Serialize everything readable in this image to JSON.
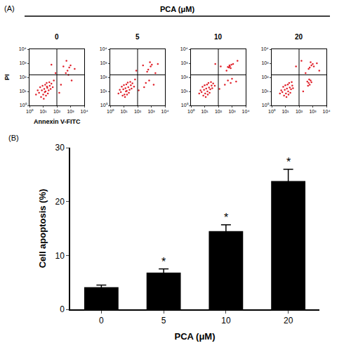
{
  "chart_data": [
    {
      "type": "scatter",
      "panel": "(A)",
      "title": "PCA (μM)",
      "xlabel": "Annexin V-FITC",
      "ylabel": "PI",
      "log": true,
      "xlim": [
        1,
        10000
      ],
      "ylim": [
        1,
        10000
      ],
      "xticks": [
        {
          "value": 1,
          "label": "10⁰"
        },
        {
          "value": 10,
          "label": "10¹"
        },
        {
          "value": 100,
          "label": "10²"
        },
        {
          "value": 1000,
          "label": "10³"
        },
        {
          "value": 10000,
          "label": "10⁴"
        }
      ],
      "yticks": [
        {
          "value": 1,
          "label": "10⁰"
        },
        {
          "value": 10,
          "label": "10¹"
        },
        {
          "value": 100,
          "label": "10²"
        },
        {
          "value": 1000,
          "label": "10³"
        },
        {
          "value": 10000,
          "label": "10⁴"
        }
      ],
      "color": "#e0202a",
      "marker": "dot",
      "quadrant_gate": {
        "x": 100,
        "y": 150
      },
      "series": [
        {
          "name": "0",
          "values": [
            [
              5,
              8
            ],
            [
              8,
              12
            ],
            [
              10,
              6
            ],
            [
              12,
              15
            ],
            [
              15,
              10
            ],
            [
              20,
              18
            ],
            [
              6,
              20
            ],
            [
              9,
              25
            ],
            [
              14,
              30
            ],
            [
              25,
              12
            ],
            [
              30,
              25
            ],
            [
              18,
              40
            ],
            [
              7,
              4
            ],
            [
              11,
              3
            ],
            [
              22,
              7
            ],
            [
              35,
              15
            ],
            [
              40,
              35
            ],
            [
              4,
              12
            ],
            [
              16,
              5
            ],
            [
              28,
              45
            ],
            [
              50,
              20
            ],
            [
              60,
              60
            ],
            [
              3,
              6
            ],
            [
              13,
              9
            ],
            [
              19,
              22
            ],
            [
              600,
              300
            ],
            [
              800,
              500
            ],
            [
              450,
              200
            ],
            [
              1000,
              700
            ],
            [
              700,
              150
            ],
            [
              300,
              600
            ],
            [
              200,
              30
            ],
            [
              1200,
              60
            ],
            [
              80,
              200
            ],
            [
              40,
              800
            ],
            [
              500,
              1500
            ],
            [
              2000,
              400
            ],
            [
              150,
              8
            ]
          ]
        },
        {
          "name": "5",
          "values": [
            [
              6,
              9
            ],
            [
              9,
              14
            ],
            [
              11,
              6
            ],
            [
              13,
              17
            ],
            [
              16,
              11
            ],
            [
              21,
              20
            ],
            [
              7,
              22
            ],
            [
              10,
              28
            ],
            [
              15,
              32
            ],
            [
              26,
              13
            ],
            [
              32,
              27
            ],
            [
              19,
              42
            ],
            [
              8,
              5
            ],
            [
              12,
              4
            ],
            [
              23,
              8
            ],
            [
              36,
              16
            ],
            [
              42,
              38
            ],
            [
              5,
              13
            ],
            [
              17,
              6
            ],
            [
              29,
              48
            ],
            [
              55,
              22
            ],
            [
              65,
              70
            ],
            [
              4,
              7
            ],
            [
              14,
              10
            ],
            [
              600,
              350
            ],
            [
              900,
              600
            ],
            [
              500,
              250
            ],
            [
              1100,
              800
            ],
            [
              400,
              40
            ],
            [
              700,
              60
            ],
            [
              1500,
              30
            ],
            [
              300,
              20
            ],
            [
              250,
              700
            ],
            [
              80,
              300
            ],
            [
              2000,
              200
            ],
            [
              800,
              1200
            ],
            [
              120,
              12
            ],
            [
              3000,
              900
            ]
          ]
        },
        {
          "name": "10",
          "values": [
            [
              6,
              9
            ],
            [
              9,
              13
            ],
            [
              11,
              7
            ],
            [
              13,
              16
            ],
            [
              16,
              10
            ],
            [
              21,
              19
            ],
            [
              7,
              21
            ],
            [
              10,
              27
            ],
            [
              15,
              31
            ],
            [
              26,
              14
            ],
            [
              32,
              26
            ],
            [
              19,
              40
            ],
            [
              8,
              5
            ],
            [
              12,
              4
            ],
            [
              23,
              8
            ],
            [
              36,
              17
            ],
            [
              42,
              36
            ],
            [
              5,
              12
            ],
            [
              17,
              6
            ],
            [
              29,
              46
            ],
            [
              55,
              25
            ],
            [
              4,
              7
            ],
            [
              600,
              500
            ],
            [
              700,
              600
            ],
            [
              800,
              450
            ],
            [
              500,
              550
            ],
            [
              650,
              700
            ],
            [
              900,
              800
            ],
            [
              400,
              300
            ],
            [
              1200,
              900
            ],
            [
              500,
              60
            ],
            [
              800,
              40
            ],
            [
              1000,
              80
            ],
            [
              300,
              30
            ],
            [
              2000,
              50
            ],
            [
              150,
              600
            ],
            [
              60,
              900
            ],
            [
              2500,
              1500
            ],
            [
              120,
              15
            ]
          ]
        },
        {
          "name": "20",
          "values": [
            [
              6,
              9
            ],
            [
              9,
              13
            ],
            [
              11,
              7
            ],
            [
              13,
              16
            ],
            [
              16,
              10
            ],
            [
              21,
              19
            ],
            [
              7,
              21
            ],
            [
              10,
              27
            ],
            [
              15,
              31
            ],
            [
              26,
              14
            ],
            [
              32,
              26
            ],
            [
              19,
              40
            ],
            [
              8,
              5
            ],
            [
              12,
              4
            ],
            [
              23,
              8
            ],
            [
              36,
              17
            ],
            [
              5,
              12
            ],
            [
              17,
              6
            ],
            [
              29,
              46
            ],
            [
              4,
              7
            ],
            [
              500,
              40
            ],
            [
              600,
              30
            ],
            [
              400,
              50
            ],
            [
              700,
              60
            ],
            [
              450,
              25
            ],
            [
              800,
              45
            ],
            [
              550,
              70
            ],
            [
              600,
              500
            ],
            [
              800,
              700
            ],
            [
              500,
              400
            ],
            [
              1000,
              900
            ],
            [
              700,
              1200
            ],
            [
              1200,
              600
            ],
            [
              300,
              200
            ],
            [
              2000,
              1000
            ],
            [
              150,
              1500
            ],
            [
              3000,
              300
            ],
            [
              200,
              10
            ],
            [
              60,
              600
            ]
          ]
        }
      ]
    },
    {
      "type": "bar",
      "panel": "(B)",
      "xlabel": "PCA (μM)",
      "ylabel": "Cell apoptosis (%)",
      "categories": [
        "0",
        "5",
        "10",
        "20"
      ],
      "values": [
        4.1,
        6.8,
        14.5,
        23.8
      ],
      "errors": [
        0.4,
        0.7,
        1.2,
        2.2
      ],
      "ylim": [
        0,
        30
      ],
      "yticks": [
        0,
        10,
        20,
        30
      ],
      "color": "#000000",
      "annotations": [
        {
          "category": "5",
          "text": "*"
        },
        {
          "category": "10",
          "text": "*"
        },
        {
          "category": "20",
          "text": "*"
        }
      ]
    }
  ]
}
